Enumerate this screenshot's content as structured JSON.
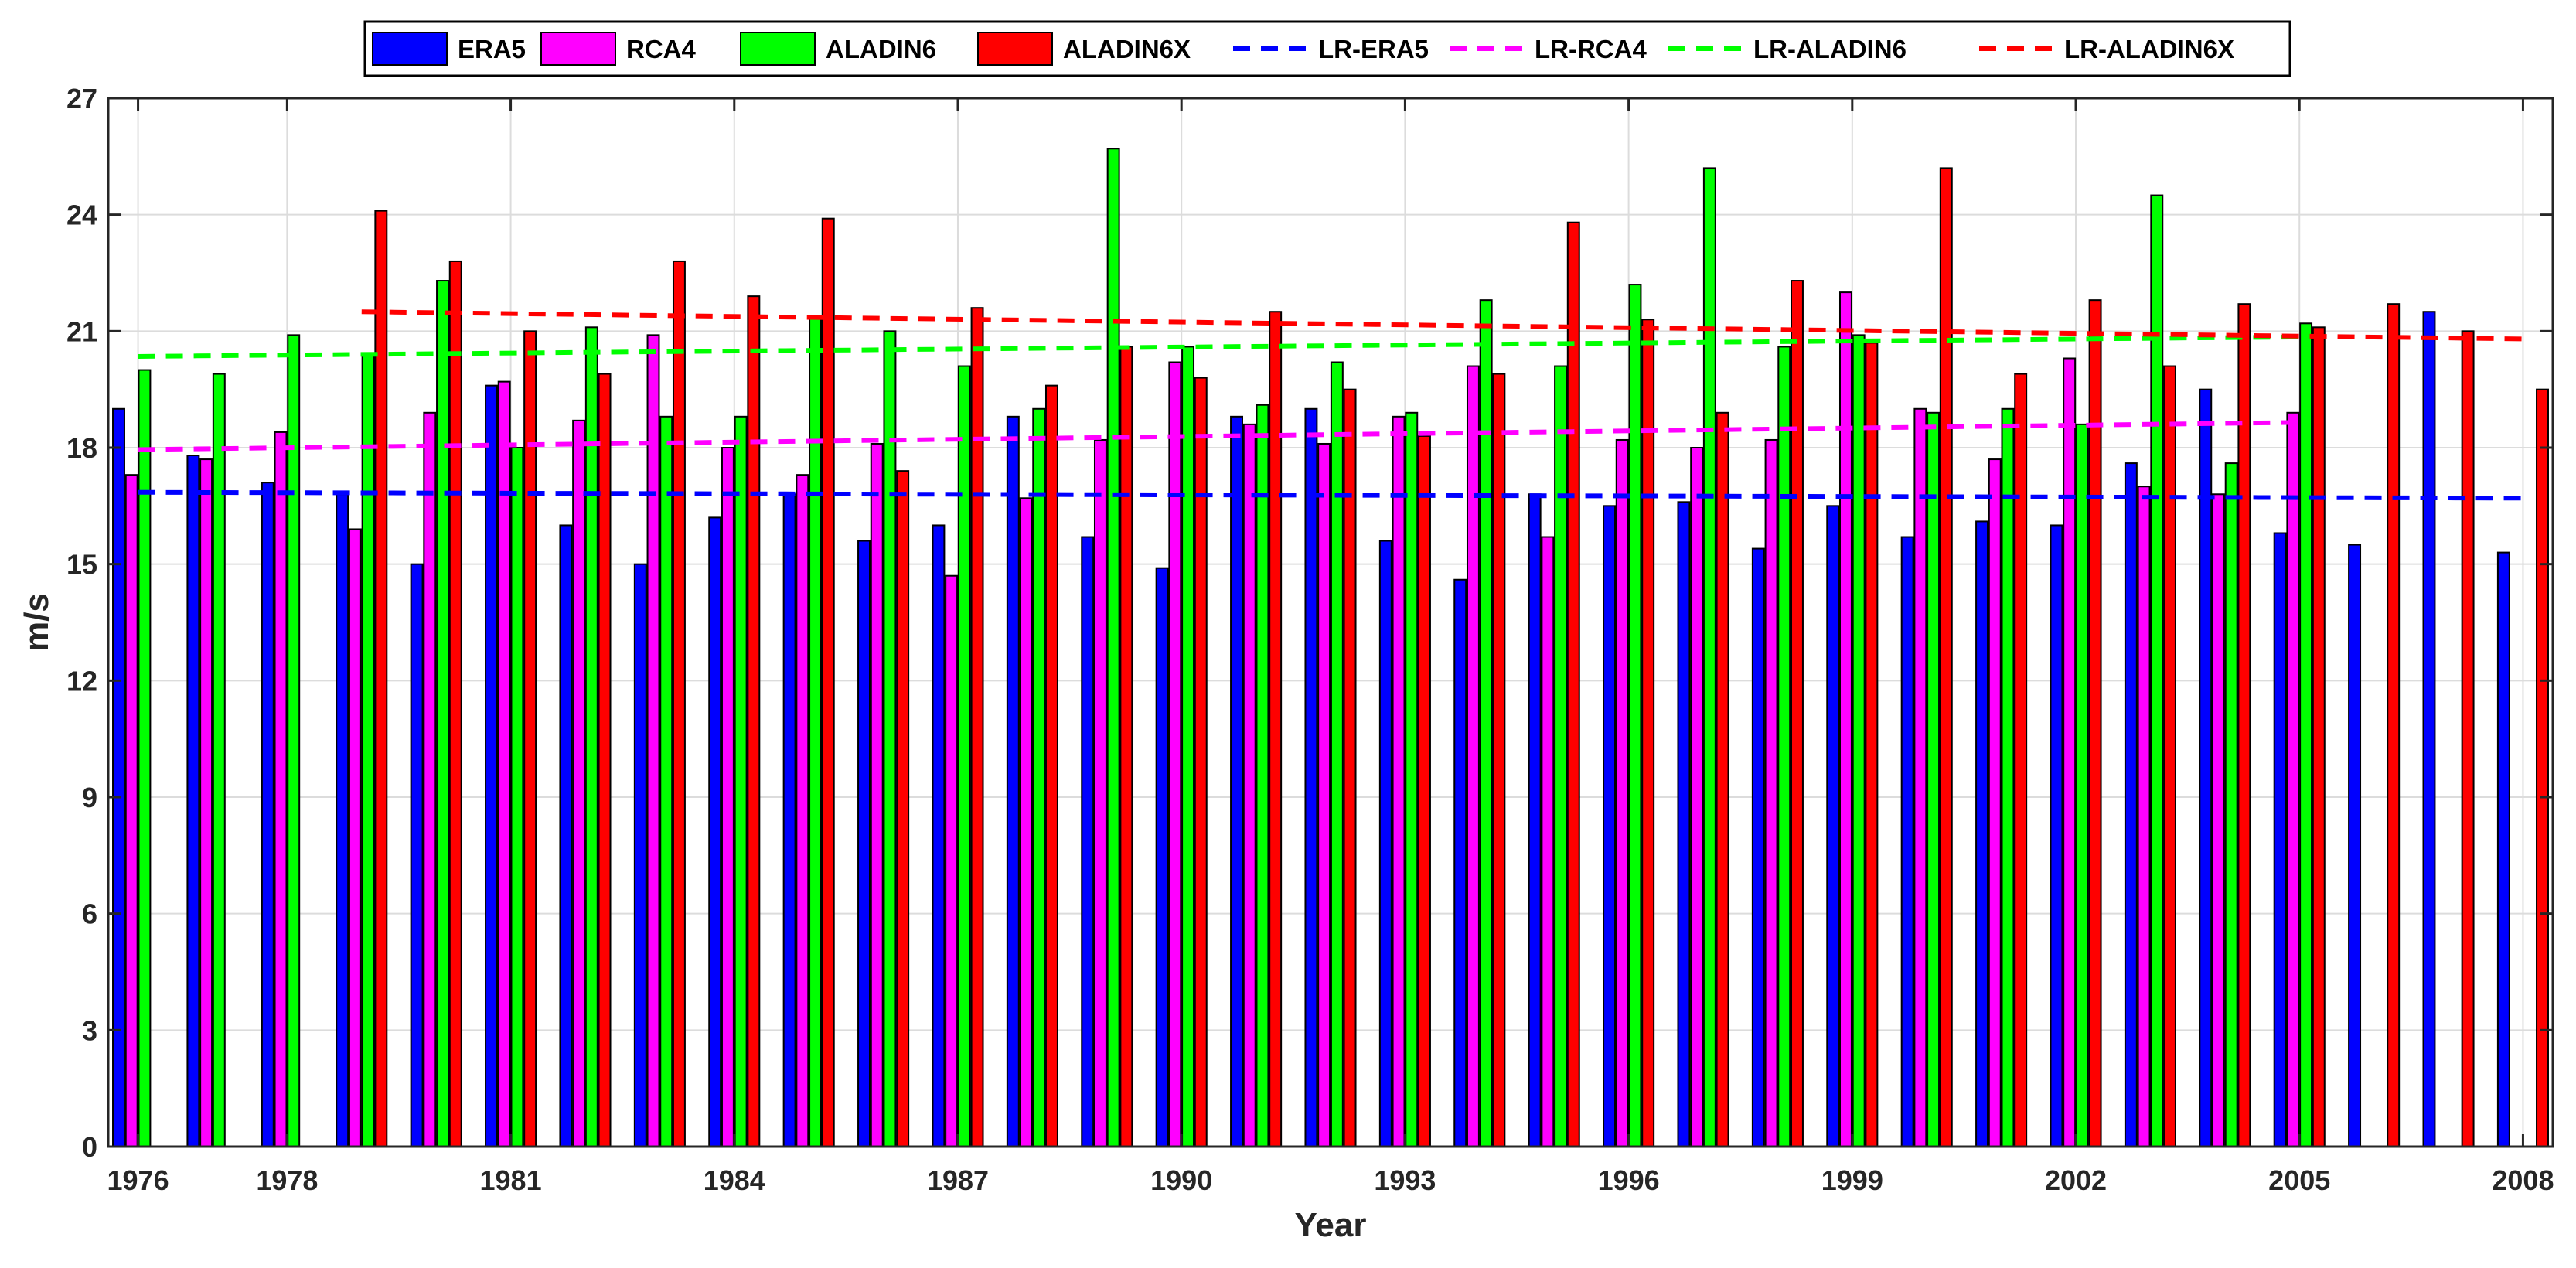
{
  "chart_data": {
    "type": "bar",
    "title": "",
    "xlabel": "Year",
    "ylabel": "m/s",
    "xlim": [
      1975.6,
      2008.4
    ],
    "ylim": [
      0,
      27
    ],
    "yticks": [
      0,
      3,
      6,
      9,
      12,
      15,
      18,
      21,
      24,
      27
    ],
    "xtick_labels": [
      "1976",
      "1978",
      "1981",
      "1984",
      "1987",
      "1990",
      "1993",
      "1996",
      "1999",
      "2002",
      "2005",
      "2008"
    ],
    "grid": true,
    "legend_placement": "top-center",
    "years": [
      1976,
      1977,
      1978,
      1979,
      1980,
      1981,
      1982,
      1983,
      1984,
      1985,
      1986,
      1987,
      1988,
      1989,
      1990,
      1991,
      1992,
      1993,
      1994,
      1995,
      1996,
      1997,
      1998,
      1999,
      2000,
      2001,
      2002,
      2003,
      2004,
      2005,
      2006,
      2007,
      2008
    ],
    "series": [
      {
        "name": "ERA5",
        "color": "#0000ff",
        "values": [
          19.0,
          17.8,
          17.1,
          16.8,
          15.0,
          19.6,
          16.0,
          15.0,
          16.2,
          16.8,
          15.6,
          16.0,
          18.8,
          15.7,
          14.9,
          18.8,
          19.0,
          15.6,
          14.6,
          16.8,
          16.5,
          16.6,
          15.4,
          16.5,
          15.7,
          16.1,
          16.0,
          17.6,
          19.5,
          15.8,
          15.5,
          21.5,
          15.3
        ]
      },
      {
        "name": "RCA4",
        "color": "#ff00ff",
        "values": [
          17.3,
          17.7,
          18.4,
          15.9,
          18.9,
          19.7,
          18.7,
          20.9,
          18.0,
          17.3,
          18.1,
          14.7,
          16.7,
          18.2,
          20.2,
          18.6,
          18.1,
          18.8,
          20.1,
          15.7,
          18.2,
          18.0,
          18.2,
          22.0,
          19.0,
          17.7,
          20.3,
          17.0,
          16.8,
          18.9,
          null,
          null,
          null
        ]
      },
      {
        "name": "ALADIN6",
        "color": "#00ff00",
        "values": [
          20.0,
          19.9,
          20.9,
          20.4,
          22.3,
          18.0,
          21.1,
          18.8,
          18.8,
          21.4,
          21.0,
          20.1,
          19.0,
          25.7,
          20.6,
          19.1,
          20.2,
          18.9,
          21.8,
          20.1,
          22.2,
          25.2,
          20.6,
          20.9,
          18.9,
          19.0,
          18.6,
          24.5,
          17.6,
          21.2,
          null,
          null,
          null
        ]
      },
      {
        "name": "ALADIN6X",
        "color": "#ff0000",
        "values": [
          null,
          null,
          null,
          24.1,
          22.8,
          21.0,
          19.9,
          22.8,
          21.9,
          23.9,
          17.4,
          21.6,
          19.6,
          20.6,
          19.8,
          21.5,
          19.5,
          18.3,
          19.9,
          23.8,
          21.3,
          18.9,
          22.3,
          20.7,
          25.2,
          19.9,
          21.8,
          20.1,
          21.7,
          21.1,
          21.7,
          21.0,
          19.5
        ]
      }
    ],
    "trend_lines": [
      {
        "name": "LR-ERA5",
        "color": "#0000ff",
        "x": [
          1976,
          2008
        ],
        "y": [
          16.85,
          16.7
        ]
      },
      {
        "name": "LR-RCA4",
        "color": "#ff00ff",
        "x": [
          1976,
          2005
        ],
        "y": [
          17.95,
          18.65
        ]
      },
      {
        "name": "LR-ALADIN6",
        "color": "#00ff00",
        "x": [
          1976,
          2005
        ],
        "y": [
          20.35,
          20.85
        ]
      },
      {
        "name": "LR-ALADIN6X",
        "color": "#ff0000",
        "x": [
          1979,
          2008
        ],
        "y": [
          21.5,
          20.8
        ]
      }
    ]
  }
}
